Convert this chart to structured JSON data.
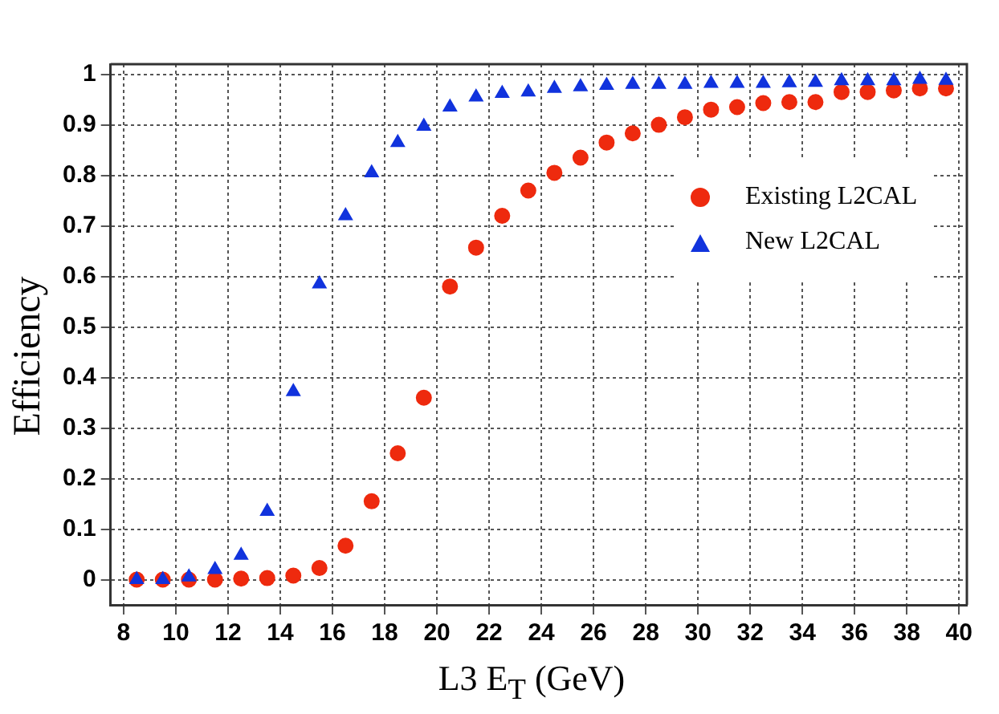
{
  "chart_data": {
    "type": "scatter",
    "xlabel": "L3 E$_{T}$ (GeV)",
    "ylabel": "Efficiency",
    "x": [
      8.5,
      9.5,
      10.5,
      11.5,
      12.5,
      13.5,
      14.5,
      15.5,
      16.5,
      17.5,
      18.5,
      19.5,
      20.5,
      21.5,
      22.5,
      23.5,
      24.5,
      25.5,
      26.5,
      27.5,
      28.5,
      29.5,
      30.5,
      31.5,
      32.5,
      33.5,
      34.5,
      35.5,
      36.5,
      37.5,
      38.5,
      39.5
    ],
    "series": [
      {
        "name": "Existing L2CAL",
        "color": "#ee2a0e",
        "marker": "circle",
        "values": [
          0,
          0,
          0,
          0,
          0.002,
          0.003,
          0.008,
          0.023,
          0.067,
          0.155,
          0.25,
          0.36,
          0.58,
          0.657,
          0.72,
          0.77,
          0.805,
          0.835,
          0.865,
          0.883,
          0.9,
          0.915,
          0.93,
          0.935,
          0.943,
          0.945,
          0.945,
          0.965,
          0.965,
          0.968,
          0.972,
          0.972
        ]
      },
      {
        "name": "New L2CAL",
        "color": "#1133dd",
        "marker": "triangle",
        "values": [
          0,
          0,
          0.005,
          0.02,
          0.048,
          0.135,
          0.372,
          0.585,
          0.72,
          0.805,
          0.865,
          0.897,
          0.935,
          0.955,
          0.962,
          0.965,
          0.972,
          0.975,
          0.978,
          0.98,
          0.98,
          0.98,
          0.982,
          0.982,
          0.982,
          0.983,
          0.984,
          0.987,
          0.987,
          0.987,
          0.99,
          0.988
        ]
      }
    ],
    "xlim": [
      7.5,
      40.3
    ],
    "xticks": [
      8,
      10,
      12,
      14,
      16,
      18,
      20,
      22,
      24,
      26,
      28,
      30,
      32,
      34,
      36,
      38,
      40
    ],
    "ylim": [
      -0.05,
      1.02
    ],
    "yticks": [
      0,
      0.1,
      0.2,
      0.3,
      0.4,
      0.5,
      0.6,
      0.7,
      0.8,
      0.9,
      1
    ],
    "grid": true,
    "legend": "right"
  }
}
